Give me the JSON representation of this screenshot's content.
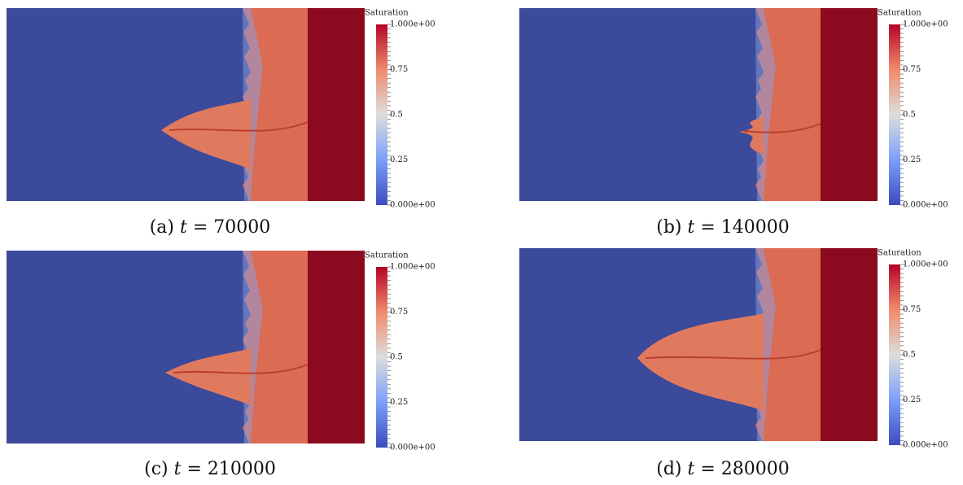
{
  "colorbar": {
    "title": "Saturation",
    "ticks": [
      "1.000e+00",
      "0.75",
      "0.5",
      "0.25",
      "0.000e+00"
    ]
  },
  "panels": [
    {
      "label": "(a)",
      "variable": "t",
      "relation": "=",
      "value": "70000"
    },
    {
      "label": "(b)",
      "variable": "t",
      "relation": "=",
      "value": "140000"
    },
    {
      "label": "(c)",
      "variable": "t",
      "relation": "=",
      "value": "210000"
    },
    {
      "label": "(d)",
      "variable": "t",
      "relation": "=",
      "value": "280000"
    }
  ]
}
